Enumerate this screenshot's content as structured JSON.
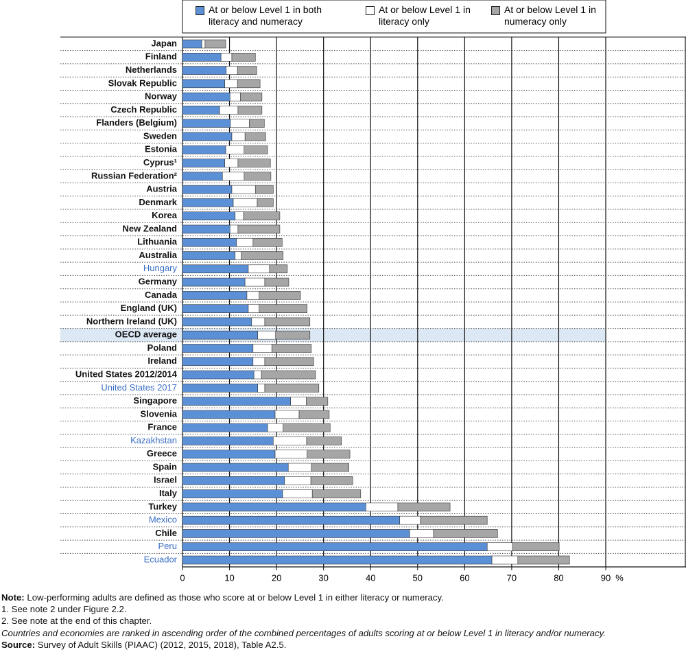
{
  "chart_data": {
    "type": "hbar-stacked",
    "categories": [
      "Japan",
      "Finland",
      "Netherlands",
      "Slovak Republic",
      "Norway",
      "Czech Republic",
      "Flanders (Belgium)",
      "Sweden",
      "Estonia",
      "Cyprus¹",
      "Russian Federation²",
      "Austria",
      "Denmark",
      "Korea",
      "New Zealand",
      "Lithuania",
      "Australia",
      "Hungary",
      "Germany",
      "Canada",
      "England (UK)",
      "Northern Ireland (UK)",
      "OECD average",
      "Poland",
      "Ireland",
      "United States 2012/2014",
      "United States 2017",
      "Singapore",
      "Slovenia",
      "France",
      "Kazakhstan",
      "Greece",
      "Spain",
      "Israel",
      "Italy",
      "Turkey",
      "Mexico",
      "Chile",
      "Peru",
      "Ecuador"
    ],
    "series": [
      {
        "name": "At or below Level 1 in both literacy and numeracy",
        "color": "#5b8fd6",
        "values": [
          4.1,
          8.2,
          9.3,
          9.0,
          10.1,
          7.9,
          10.2,
          10.5,
          9.2,
          9.0,
          8.5,
          10.5,
          10.8,
          11.2,
          10.1,
          11.5,
          11.2,
          14.0,
          13.3,
          13.7,
          14.0,
          14.7,
          16.0,
          15.0,
          15.0,
          15.2,
          16.0,
          23.0,
          19.7,
          18.1,
          19.3,
          19.7,
          22.5,
          21.7,
          21.3,
          39.0,
          46.2,
          48.3,
          64.8,
          65.8
        ]
      },
      {
        "name": "At or below Level 1 in literacy only",
        "color": "#ffffff",
        "values": [
          0.7,
          2.3,
          2.4,
          2.7,
          2.2,
          3.9,
          4.0,
          2.8,
          3.9,
          2.8,
          4.6,
          5.0,
          5.1,
          1.8,
          1.7,
          3.5,
          1.3,
          4.5,
          4.2,
          2.6,
          2.3,
          2.8,
          3.8,
          4.0,
          2.5,
          1.6,
          1.5,
          3.3,
          5.1,
          3.3,
          7.1,
          6.8,
          4.9,
          5.6,
          6.3,
          6.8,
          4.4,
          5.1,
          5.4,
          5.5
        ]
      },
      {
        "name": "At or below Level 1 in numeracy only",
        "color": "#a6a6a6",
        "values": [
          4.4,
          5.0,
          4.1,
          4.8,
          4.6,
          5.1,
          3.2,
          4.4,
          5.0,
          6.9,
          5.7,
          3.8,
          3.4,
          7.7,
          8.9,
          6.2,
          8.9,
          3.8,
          5.1,
          8.8,
          10.2,
          9.6,
          7.3,
          8.4,
          10.4,
          11.5,
          11.5,
          4.6,
          6.4,
          10.0,
          7.4,
          9.1,
          8.0,
          8.9,
          10.3,
          11.1,
          14.2,
          13.6,
          9.9,
          11.0
        ]
      }
    ],
    "xlim": [
      0,
      90
    ],
    "xticks": [
      0,
      10,
      20,
      30,
      40,
      50,
      60,
      70,
      80,
      90
    ],
    "xlabel": "%",
    "grid": true,
    "highlighted": [
      17,
      26,
      30,
      36,
      38,
      39
    ],
    "highlight_color": "#3a6fc4",
    "reference": 22
  },
  "notes": {
    "note": {
      "label": "Note:",
      "text": "Low-performing adults are defined as those who score at or below Level 1 in either literacy or numeracy."
    },
    "footnote_1": "1. See note 2 under Figure 2.2.",
    "footnote_2": "2. See note at the end of this chapter.",
    "ranking": "Countries and economies are ranked in ascending order of the combined percentages of adults scoring at or below Level 1 in literacy and/or numeracy.",
    "source": {
      "label": "Source:",
      "text": "Survey of Adult Skills (PIAAC) (2012, 2015, 2018), Table A2.5."
    }
  }
}
